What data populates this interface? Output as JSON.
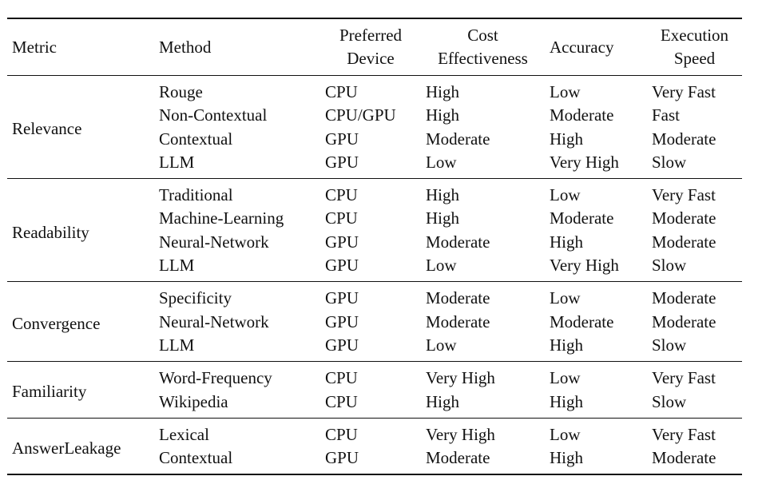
{
  "table": {
    "headers": {
      "metric": "Metric",
      "method": "Method",
      "device": [
        "Preferred",
        "Device"
      ],
      "cost": [
        "Cost",
        "Effectiveness"
      ],
      "accuracy": "Accuracy",
      "speed": [
        "Execution",
        "Speed"
      ]
    },
    "groups": [
      {
        "metric": "Relevance",
        "rows": [
          {
            "method": "Rouge",
            "device": "CPU",
            "cost": "High",
            "accuracy": "Low",
            "speed": "Very Fast"
          },
          {
            "method": "Non-Contextual",
            "device": "CPU/GPU",
            "cost": "High",
            "accuracy": "Moderate",
            "speed": "Fast"
          },
          {
            "method": "Contextual",
            "device": "GPU",
            "cost": "Moderate",
            "accuracy": "High",
            "speed": "Moderate"
          },
          {
            "method": "LLM",
            "device": "GPU",
            "cost": "Low",
            "accuracy": "Very High",
            "speed": "Slow"
          }
        ]
      },
      {
        "metric": "Readability",
        "rows": [
          {
            "method": "Traditional",
            "device": "CPU",
            "cost": "High",
            "accuracy": "Low",
            "speed": "Very Fast"
          },
          {
            "method": "Machine-Learning",
            "device": "CPU",
            "cost": "High",
            "accuracy": "Moderate",
            "speed": "Moderate"
          },
          {
            "method": "Neural-Network",
            "device": "GPU",
            "cost": "Moderate",
            "accuracy": "High",
            "speed": "Moderate"
          },
          {
            "method": "LLM",
            "device": "GPU",
            "cost": "Low",
            "accuracy": "Very High",
            "speed": "Slow"
          }
        ]
      },
      {
        "metric": "Convergence",
        "rows": [
          {
            "method": "Specificity",
            "device": "GPU",
            "cost": "Moderate",
            "accuracy": "Low",
            "speed": "Moderate"
          },
          {
            "method": "Neural-Network",
            "device": "GPU",
            "cost": "Moderate",
            "accuracy": "Moderate",
            "speed": "Moderate"
          },
          {
            "method": "LLM",
            "device": "GPU",
            "cost": "Low",
            "accuracy": "High",
            "speed": "Slow"
          }
        ]
      },
      {
        "metric": "Familiarity",
        "rows": [
          {
            "method": "Word-Frequency",
            "device": "CPU",
            "cost": "Very High",
            "accuracy": "Low",
            "speed": "Very Fast"
          },
          {
            "method": "Wikipedia",
            "device": "CPU",
            "cost": "High",
            "accuracy": "High",
            "speed": "Slow"
          }
        ]
      },
      {
        "metric": "AnswerLeakage",
        "rows": [
          {
            "method": "Lexical",
            "device": "CPU",
            "cost": "Very High",
            "accuracy": "Low",
            "speed": "Very Fast"
          },
          {
            "method": "Contextual",
            "device": "GPU",
            "cost": "Moderate",
            "accuracy": "High",
            "speed": "Moderate"
          }
        ]
      }
    ]
  }
}
